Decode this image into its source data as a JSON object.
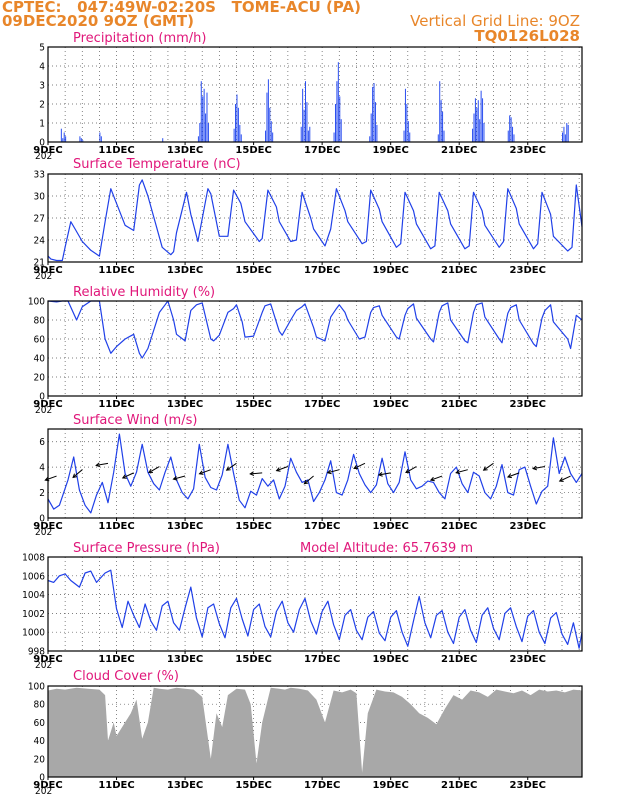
{
  "header": {
    "line1": "CPTEC:   047:49W-02:20S   TOME-ACU (PA)",
    "line2": "09DEC2020 9OZ (GMT)",
    "grid_line": "Vertical Grid Line: 9OZ",
    "code": "TQ0126L028",
    "year_stub": "202"
  },
  "colors": {
    "line": "#2040e8",
    "bar": "#2a4ef0",
    "cloud": "#a8a8a8",
    "title": "#e0177a",
    "header": "#e8862a"
  },
  "chart_data": [
    {
      "type": "bar",
      "title": "Precipitation (mm/h)",
      "ylim": [
        0,
        5
      ],
      "yticks": [
        "0",
        "1",
        "2",
        "3",
        "4",
        "5"
      ],
      "x_unit": "hours since 09DEC 00Z",
      "bursts": [
        {
          "start": 9,
          "values": [
            0.7,
            0.2,
            0.5,
            0.3
          ]
        },
        {
          "start": 22,
          "values": [
            0.3,
            0.2,
            0.1
          ]
        },
        {
          "start": 36,
          "values": [
            0.5,
            0.3
          ]
        },
        {
          "start": 80,
          "values": [
            0.2
          ]
        },
        {
          "start": 105,
          "values": [
            0.3,
            1.0,
            3.2,
            2.4,
            2.8,
            1.5,
            2.6,
            1.0
          ]
        },
        {
          "start": 130,
          "values": [
            0.7,
            2.0,
            2.5,
            1.8,
            0.9,
            0.4
          ]
        },
        {
          "start": 152,
          "values": [
            0.6,
            2.6,
            3.3,
            1.8,
            1.1,
            0.5
          ]
        },
        {
          "start": 177,
          "values": [
            0.8,
            2.8,
            1.7,
            3.2,
            2.1,
            0.6,
            0.8
          ]
        },
        {
          "start": 200,
          "values": [
            0.5,
            2.0,
            3.2,
            4.2,
            2.4,
            1.2
          ]
        },
        {
          "start": 225,
          "values": [
            0.3,
            1.5,
            2.9,
            3.1,
            2.1,
            0.9
          ]
        },
        {
          "start": 249,
          "values": [
            0.6,
            2.8,
            2.0,
            1.1,
            0.5
          ]
        },
        {
          "start": 273,
          "values": [
            0.4,
            3.2,
            2.2,
            1.6,
            0.6
          ]
        },
        {
          "start": 297,
          "values": [
            0.7,
            1.5,
            2.3,
            1.8,
            2.2,
            1.2,
            2.7,
            2.3,
            1.0
          ]
        },
        {
          "start": 322,
          "values": [
            0.6,
            1.4,
            1.3,
            0.8,
            0.4
          ]
        },
        {
          "start": 360,
          "values": [
            0.5,
            0.8,
            0.4,
            1.0,
            0.9
          ]
        }
      ],
      "x_ticks": [
        "9DEC",
        "11DEC",
        "13DEC",
        "15DEC",
        "17DEC",
        "19DEC",
        "21DEC",
        "23DEC"
      ]
    },
    {
      "type": "line",
      "title": "Surface Temperature (nC)",
      "ylim": [
        21,
        33
      ],
      "yticks": [
        "21",
        "24",
        "27",
        "30",
        "33"
      ],
      "x_unit": "hours since 09DEC 00Z",
      "x": [
        0,
        2,
        6,
        10,
        12,
        16,
        19,
        24,
        30,
        36,
        40,
        44,
        48,
        54,
        60,
        64,
        66,
        70,
        80,
        86,
        88,
        90,
        97,
        100,
        105,
        112,
        114,
        120,
        126,
        130,
        135,
        138,
        148,
        150,
        154,
        160,
        162,
        170,
        174,
        178,
        184,
        186,
        194,
        198,
        202,
        208,
        210,
        220,
        223,
        226,
        232,
        234,
        244,
        247,
        250,
        256,
        258,
        268,
        271,
        274,
        280,
        282,
        292,
        295,
        298,
        304,
        306,
        316,
        319,
        322,
        328,
        330,
        340,
        343,
        346,
        352,
        354,
        364,
        367,
        370,
        374
      ],
      "y": [
        21.8,
        21.4,
        21.2,
        21.2,
        23,
        26.5,
        25.5,
        23.8,
        22.6,
        21.8,
        26.5,
        31,
        29,
        26,
        25.3,
        31.5,
        32.2,
        30,
        23,
        22,
        22.4,
        25,
        30.5,
        27.5,
        23.8,
        31,
        30.3,
        24.5,
        24.5,
        30.8,
        29,
        26.5,
        23.8,
        24.2,
        30.8,
        28.5,
        26.5,
        23.8,
        24,
        30.5,
        27,
        25.5,
        23.2,
        25.5,
        31,
        28,
        26.5,
        23.5,
        23.8,
        30.8,
        28.2,
        26.5,
        23,
        23.5,
        30.5,
        28,
        26.2,
        22.8,
        23.2,
        30.5,
        28,
        26.2,
        22.8,
        23.2,
        30.5,
        28,
        26,
        23,
        23.8,
        31,
        28.3,
        26.2,
        22.8,
        23.5,
        30.5,
        27.5,
        24.5,
        22.5,
        23,
        31.5,
        25.8
      ]
    },
    {
      "type": "line",
      "title": "Relative Humidity (%)",
      "ylim": [
        0,
        100
      ],
      "yticks": [
        "0",
        "20",
        "40",
        "60",
        "80",
        "100"
      ],
      "x_unit": "hours since 09DEC 00Z",
      "x": [
        0,
        6,
        10,
        14,
        20,
        24,
        30,
        36,
        40,
        44,
        48,
        54,
        60,
        64,
        66,
        70,
        78,
        82,
        84,
        88,
        90,
        96,
        100,
        104,
        108,
        114,
        116,
        120,
        126,
        130,
        132,
        136,
        138,
        144,
        150,
        152,
        156,
        162,
        164,
        170,
        174,
        178,
        180,
        186,
        188,
        194,
        198,
        202,
        204,
        208,
        210,
        218,
        222,
        226,
        228,
        232,
        234,
        244,
        246,
        250,
        252,
        256,
        258,
        268,
        270,
        274,
        276,
        280,
        282,
        292,
        294,
        298,
        300,
        304,
        306,
        316,
        318,
        322,
        324,
        328,
        330,
        340,
        342,
        346,
        348,
        352,
        354,
        364,
        366,
        370,
        374
      ],
      "y": [
        100,
        99,
        100,
        100,
        80,
        94,
        100,
        100,
        60,
        45,
        52,
        60,
        65,
        45,
        40,
        50,
        88,
        96,
        100,
        80,
        65,
        58,
        90,
        96,
        98,
        60,
        58,
        64,
        88,
        92,
        96,
        78,
        62,
        63,
        88,
        95,
        97,
        68,
        64,
        80,
        90,
        94,
        97,
        72,
        62,
        58,
        83,
        92,
        96,
        88,
        80,
        60,
        62,
        88,
        93,
        95,
        85,
        62,
        60,
        85,
        92,
        97,
        82,
        60,
        57,
        88,
        95,
        98,
        80,
        58,
        56,
        88,
        96,
        98,
        83,
        60,
        56,
        87,
        93,
        96,
        80,
        55,
        52,
        82,
        90,
        96,
        78,
        60,
        50,
        85,
        80
      ]
    },
    {
      "type": "line",
      "title": "Surface Wind (m/s)",
      "ylim": [
        0,
        7
      ],
      "yticks": [
        "0",
        "2",
        "4",
        "6"
      ],
      "x_unit": "hours since 09DEC 00Z",
      "x": [
        0,
        4,
        8,
        14,
        18,
        22,
        26,
        30,
        34,
        38,
        42,
        46,
        50,
        54,
        58,
        62,
        66,
        70,
        74,
        78,
        82,
        86,
        90,
        94,
        98,
        102,
        106,
        110,
        114,
        118,
        122,
        126,
        130,
        134,
        138,
        142,
        146,
        150,
        154,
        158,
        162,
        166,
        170,
        174,
        178,
        182,
        186,
        190,
        194,
        198,
        202,
        206,
        210,
        214,
        218,
        222,
        226,
        230,
        234,
        238,
        242,
        246,
        250,
        254,
        258,
        262,
        266,
        270,
        274,
        278,
        282,
        286,
        290,
        294,
        298,
        302,
        306,
        310,
        314,
        318,
        322,
        326,
        330,
        334,
        338,
        342,
        346,
        350,
        354,
        358,
        362,
        366,
        370,
        374
      ],
      "y": [
        1.5,
        0.7,
        1.0,
        3.0,
        4.8,
        2.2,
        1.0,
        0.4,
        1.8,
        2.8,
        1.2,
        3.6,
        6.6,
        3.5,
        2.5,
        3.6,
        5.8,
        3.6,
        2.7,
        2.2,
        3.6,
        4.8,
        3.0,
        2.0,
        1.5,
        2.3,
        5.8,
        3.2,
        2.4,
        2.2,
        3.4,
        5.8,
        3.5,
        1.4,
        0.8,
        2.1,
        1.8,
        3.1,
        2.5,
        3.0,
        1.5,
        2.5,
        4.7,
        3.6,
        2.8,
        3.0,
        1.3,
        2.0,
        3.0,
        4.5,
        2.0,
        1.8,
        3.0,
        5.0,
        3.5,
        2.6,
        2.0,
        2.6,
        4.7,
        2.7,
        2.0,
        2.8,
        5.2,
        3.0,
        2.3,
        2.5,
        2.9,
        2.8,
        2.0,
        1.5,
        3.5,
        4.0,
        2.7,
        2.0,
        3.6,
        3.3,
        2.0,
        1.5,
        2.5,
        4.2,
        2.0,
        1.8,
        3.8,
        4.0,
        2.5,
        1.1,
        2.1,
        2.5,
        6.3,
        3.5,
        4.8,
        3.5,
        2.8,
        3.5
      ]
    },
    {
      "type": "line",
      "title": "Surface Pressure (hPa)",
      "annotation": "Model Altitude: 65.7639  m",
      "ylim": [
        998,
        1008
      ],
      "yticks": [
        "998",
        "1000",
        "1002",
        "1004",
        "1006",
        "1008"
      ],
      "x_unit": "hours since 09DEC 00Z",
      "x": [
        0,
        4,
        8,
        12,
        16,
        22,
        26,
        30,
        34,
        40,
        44,
        48,
        52,
        56,
        60,
        64,
        68,
        72,
        76,
        80,
        84,
        88,
        92,
        96,
        100,
        104,
        108,
        112,
        116,
        120,
        124,
        128,
        132,
        136,
        140,
        144,
        148,
        152,
        156,
        160,
        164,
        168,
        172,
        176,
        180,
        184,
        188,
        192,
        196,
        200,
        204,
        208,
        212,
        216,
        220,
        224,
        228,
        232,
        236,
        240,
        244,
        248,
        252,
        256,
        260,
        264,
        268,
        272,
        276,
        280,
        284,
        288,
        292,
        296,
        300,
        304,
        308,
        312,
        316,
        320,
        324,
        328,
        332,
        336,
        340,
        344,
        348,
        352,
        356,
        360,
        364,
        368,
        372,
        374
      ],
      "y": [
        1005.5,
        1005.3,
        1006,
        1006.2,
        1005.5,
        1004.8,
        1006.3,
        1006.5,
        1005.3,
        1006.3,
        1006.6,
        1002.5,
        1000.5,
        1003.3,
        1001.8,
        1000.5,
        1003,
        1001.2,
        1000.2,
        1002.8,
        1003.3,
        1001.0,
        1000.2,
        1002.6,
        1004.8,
        1001.5,
        999.5,
        1002.6,
        1003.0,
        1000.9,
        999.4,
        1002.6,
        1003.6,
        1001.4,
        999.6,
        1002.4,
        1003.0,
        1000.6,
        999.5,
        1002.2,
        1003.3,
        1001.0,
        1000.0,
        1002.4,
        1003.6,
        1001.2,
        999.8,
        1002.2,
        1003.3,
        1000.8,
        999.2,
        1001.8,
        1002.4,
        1000.2,
        999.2,
        1001.6,
        1002.2,
        999.9,
        999.1,
        1001.6,
        1002.3,
        1000.0,
        998.5,
        1001.2,
        1003.8,
        1001.0,
        999.4,
        1001.8,
        1002.3,
        1000.0,
        998.8,
        1001.6,
        1002.4,
        1000.2,
        998.9,
        1001.8,
        1002.6,
        1000.4,
        999.2,
        1002.0,
        1002.6,
        1000.6,
        999.0,
        1001.7,
        1002.3,
        1000.0,
        998.8,
        1001.5,
        1002.1,
        999.8,
        998.7,
        1001.0,
        998.3,
        1000.0
      ]
    },
    {
      "type": "area",
      "title": "Cloud Cover (%)",
      "ylim": [
        0,
        100
      ],
      "yticks": [
        "0",
        "20",
        "40",
        "60",
        "80",
        "100"
      ],
      "x_unit": "hours since 09DEC 00Z",
      "x": [
        0,
        6,
        12,
        20,
        28,
        36,
        40,
        42,
        46,
        48,
        52,
        58,
        62,
        66,
        70,
        74,
        78,
        84,
        90,
        96,
        102,
        108,
        114,
        118,
        122,
        126,
        132,
        138,
        142,
        146,
        150,
        156,
        162,
        166,
        170,
        176,
        182,
        188,
        194,
        200,
        206,
        212,
        216,
        220,
        224,
        230,
        236,
        242,
        248,
        254,
        260,
        266,
        272,
        278,
        284,
        290,
        296,
        302,
        308,
        314,
        320,
        326,
        332,
        338,
        344,
        350,
        356,
        362,
        368,
        374
      ],
      "y": [
        95,
        97,
        96,
        98,
        97,
        96,
        90,
        40,
        60,
        45,
        55,
        70,
        85,
        42,
        60,
        98,
        97,
        96,
        98,
        97,
        96,
        88,
        20,
        70,
        55,
        90,
        97,
        96,
        80,
        15,
        60,
        98,
        97,
        96,
        98,
        97,
        95,
        85,
        60,
        95,
        93,
        96,
        92,
        5,
        70,
        96,
        94,
        93,
        88,
        80,
        70,
        65,
        58,
        75,
        90,
        85,
        95,
        93,
        88,
        96,
        94,
        92,
        95,
        90,
        96,
        94,
        95,
        93,
        96,
        95
      ]
    }
  ]
}
